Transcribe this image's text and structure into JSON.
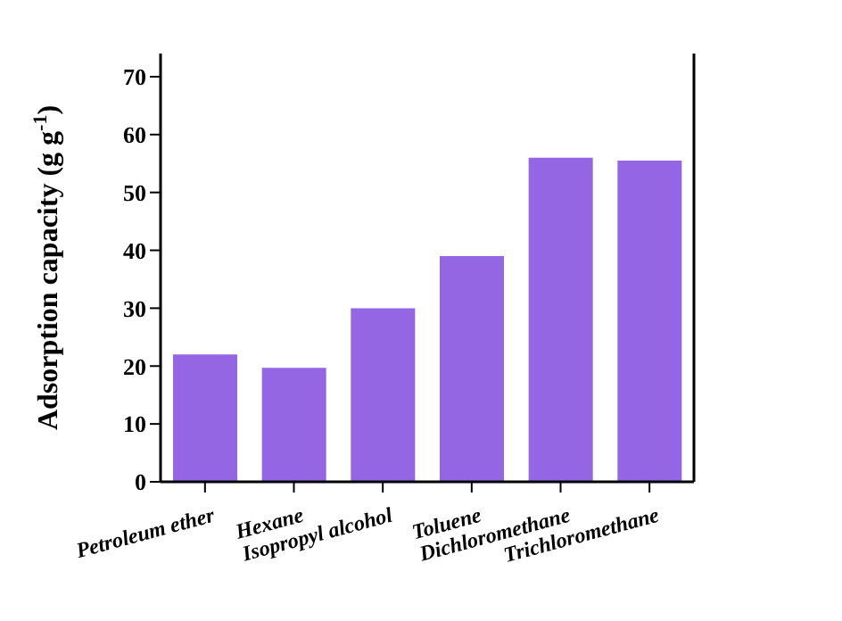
{
  "chart_data": {
    "type": "bar",
    "ylabel": "Adsorption capacity (g g$^{-1}$)",
    "categories": [
      "Petroleum ether",
      "Hexane",
      "Isopropyl alcohol",
      "Toluene",
      "Dichloromethane",
      "Trichloromethane"
    ],
    "values": [
      22,
      19.7,
      30,
      39,
      56,
      55.5
    ],
    "color": "#9466e4",
    "ylim": [
      0,
      74
    ],
    "yticks": [
      0,
      10,
      20,
      30,
      40,
      50,
      60,
      70
    ],
    "grid": false,
    "legend": false
  }
}
